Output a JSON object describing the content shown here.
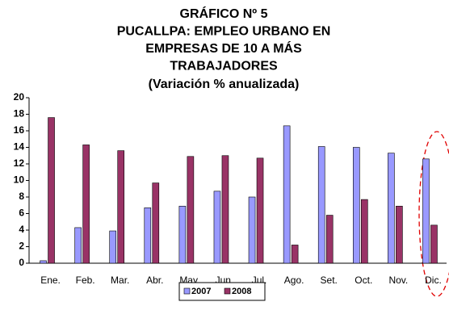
{
  "chart_data": {
    "type": "bar",
    "title": [
      "GRÁFICO Nº 5",
      "PUCALLPA: EMPLEO URBANO EN",
      "EMPRESAS DE 10 A MÁS",
      "TRABAJADORES"
    ],
    "subtitle": "(Variación % anualizada)",
    "categories": [
      "Ene.",
      "Feb.",
      "Mar.",
      "Abr.",
      "May.",
      "Jun.",
      "Jul.",
      "Ago.",
      "Set.",
      "Oct.",
      "Nov.",
      "Dic."
    ],
    "series": [
      {
        "name": "2007",
        "color": "#9999ff",
        "values": [
          0.3,
          4.3,
          3.9,
          6.7,
          6.9,
          8.7,
          8.0,
          16.6,
          14.1,
          14.0,
          13.3,
          12.6
        ]
      },
      {
        "name": "2008",
        "color": "#993366",
        "values": [
          17.6,
          14.3,
          13.6,
          9.7,
          12.9,
          13.0,
          12.7,
          2.2,
          5.8,
          7.7,
          6.9,
          4.6
        ]
      }
    ],
    "ylim": [
      0,
      20
    ],
    "yticks": [
      0,
      2,
      4,
      6,
      8,
      10,
      12,
      14,
      16,
      18,
      20
    ],
    "grid": false
  }
}
